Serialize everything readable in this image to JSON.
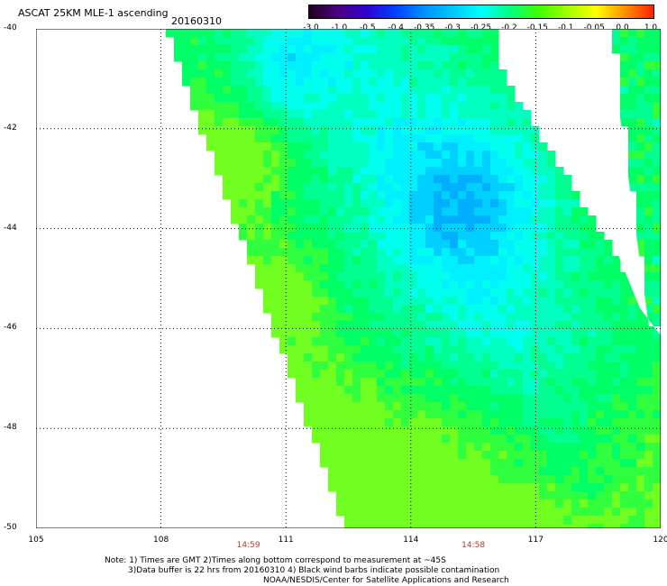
{
  "header": {
    "title": "ASCAT 25KM MLE-1 ascending",
    "date": "20160310"
  },
  "colorbar": {
    "labels": [
      "-3.0",
      "-1.0",
      "-0.5",
      "-0.4",
      "-0.35",
      "-0.3",
      "-0.25",
      "-0.2",
      "-0.15",
      "-0.1",
      "-0.05",
      "0.0",
      "1.0"
    ],
    "colors": [
      "#200020",
      "#4b0080",
      "#3000d0",
      "#0040ff",
      "#0090ff",
      "#00c8ff",
      "#00ffff",
      "#00ff80",
      "#40ff00",
      "#a0ff00",
      "#ffff00",
      "#ff9000",
      "#ff2000"
    ]
  },
  "axes": {
    "y_ticks": [
      "-40",
      "-42",
      "-44",
      "-46",
      "-48",
      "-50"
    ],
    "x_ticks": [
      "105",
      "108",
      "111",
      "114",
      "117",
      "120"
    ],
    "lat_range": [
      -40,
      -50
    ],
    "lon_range": [
      105,
      120
    ]
  },
  "pass_times": [
    {
      "label": "14:59",
      "lon": 110.1
    },
    {
      "label": "14:58",
      "lon": 115.5
    }
  ],
  "notes": {
    "line1": "Note: 1) Times are GMT 2)Times along bottom correspond to measurement at ~45S",
    "line2": "3)Data buffer is 22 hrs from 20160310 4) Black wind barbs indicate possible contamination",
    "line3": "NOAA/NESDIS/Center for Satellite Applications and Research"
  },
  "swath_colors": {
    "green": "#00ff66",
    "cyan": "#00ffee",
    "blue": "#00a8ff"
  }
}
